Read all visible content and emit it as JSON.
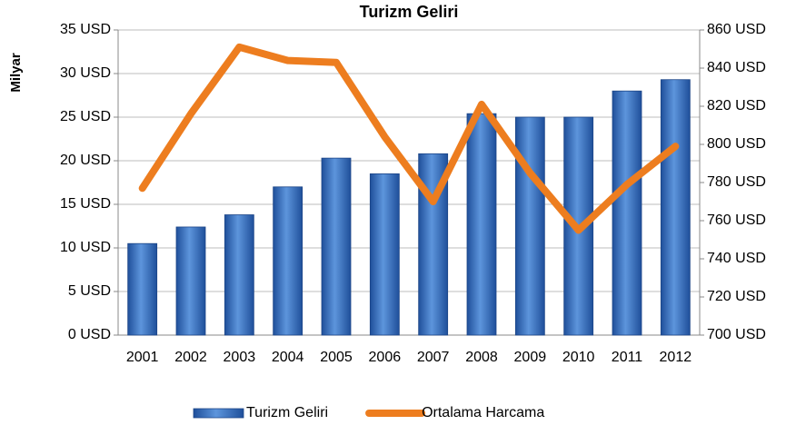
{
  "chart_data": {
    "type": "bar_line",
    "title": "Turizm Geliri",
    "y_label": "Milyar",
    "categories": [
      "2001",
      "2002",
      "2003",
      "2004",
      "2005",
      "2006",
      "2007",
      "2008",
      "2009",
      "2010",
      "2011",
      "2012"
    ],
    "series": [
      {
        "name": "Turizm Geliri",
        "type": "bar",
        "color": "#3a70c0",
        "values": [
          10.5,
          12.4,
          13.8,
          17.0,
          20.3,
          18.5,
          20.8,
          25.4,
          25.0,
          25.0,
          28.0,
          29.3
        ]
      },
      {
        "name": "Ortalama Harcama",
        "type": "line",
        "axis": "y2",
        "color": "#ed7d1f",
        "values": [
          777,
          816,
          851,
          844,
          843,
          804,
          770,
          821,
          785,
          755,
          779,
          799
        ]
      }
    ],
    "ylim": [
      0,
      35
    ],
    "yticks": [
      {
        "value": 0,
        "label": "0 USD"
      },
      {
        "value": 5,
        "label": "5 USD"
      },
      {
        "value": 10,
        "label": "10 USD"
      },
      {
        "value": 15,
        "label": "15 USD"
      },
      {
        "value": 20,
        "label": "20 USD"
      },
      {
        "value": 25,
        "label": "25 USD"
      },
      {
        "value": 30,
        "label": "30 USD"
      },
      {
        "value": 35,
        "label": "35 USD"
      }
    ],
    "y2lim": [
      700,
      860
    ],
    "y2ticks": [
      {
        "value": 700,
        "label": "700 USD"
      },
      {
        "value": 720,
        "label": "720 USD"
      },
      {
        "value": 740,
        "label": "740 USD"
      },
      {
        "value": 760,
        "label": "760 USD"
      },
      {
        "value": 780,
        "label": "780 USD"
      },
      {
        "value": 800,
        "label": "800 USD"
      },
      {
        "value": 820,
        "label": "820 USD"
      },
      {
        "value": 840,
        "label": "840 USD"
      },
      {
        "value": 860,
        "label": "860 USD"
      }
    ],
    "grid": true,
    "legend": "bottom"
  }
}
